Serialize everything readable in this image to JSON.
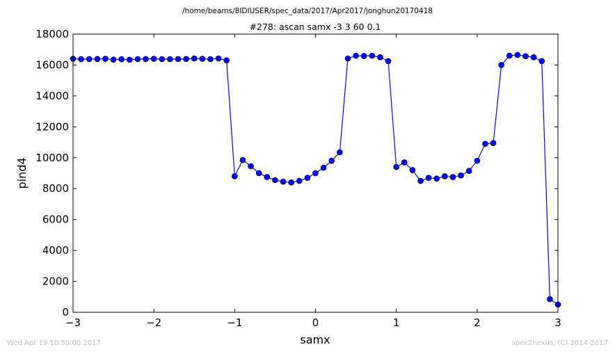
{
  "suptitle": "/home/beams/8IDIUSER/spec_data/2017/Apr2017/jonghun20170418",
  "footer_left": "Wed Apr 19 10:50:00 2017",
  "footer_right": "spec2nexus, (C) 2014-2017",
  "chart_data": {
    "type": "line",
    "title": "#278: ascan  samx -3 3  60 0.1",
    "xlabel": "samx",
    "ylabel": "pind4",
    "xlim": [
      -3,
      3
    ],
    "ylim": [
      0,
      18000
    ],
    "xticks": [
      -3,
      -2,
      -1,
      0,
      1,
      2,
      3
    ],
    "xtick_labels": [
      "−3",
      "−2",
      "−1",
      "0",
      "1",
      "2",
      "3"
    ],
    "yticks": [
      0,
      2000,
      4000,
      6000,
      8000,
      10000,
      12000,
      14000,
      16000,
      18000
    ],
    "ytick_labels": [
      "0",
      "2000",
      "4000",
      "6000",
      "8000",
      "10000",
      "12000",
      "14000",
      "16000",
      "18000"
    ],
    "grid": false,
    "line_color": "#0000ff",
    "marker": "circle",
    "series": [
      {
        "x": [
          -3.0,
          -2.9,
          -2.8,
          -2.7,
          -2.6,
          -2.5,
          -2.4,
          -2.3,
          -2.2,
          -2.1,
          -2.0,
          -1.9,
          -1.8,
          -1.7,
          -1.6,
          -1.5,
          -1.4,
          -1.3,
          -1.2,
          -1.1,
          -1.0,
          -0.9,
          -0.8,
          -0.7,
          -0.6,
          -0.5,
          -0.4,
          -0.3,
          -0.2,
          -0.1,
          0.0,
          0.1,
          0.2,
          0.3,
          0.4,
          0.5,
          0.6,
          0.7,
          0.8,
          0.9,
          1.0,
          1.1,
          1.2,
          1.3,
          1.4,
          1.5,
          1.6,
          1.7,
          1.8,
          1.9,
          2.0,
          2.1,
          2.2,
          2.3,
          2.4,
          2.5,
          2.6,
          2.7,
          2.8,
          2.9,
          3.0
        ],
        "y": [
          16400,
          16380,
          16380,
          16390,
          16400,
          16350,
          16370,
          16340,
          16380,
          16390,
          16400,
          16380,
          16380,
          16380,
          16390,
          16420,
          16400,
          16380,
          16420,
          16300,
          8800,
          9850,
          9450,
          9000,
          8750,
          8550,
          8450,
          8400,
          8500,
          8700,
          9000,
          9350,
          9800,
          10350,
          16420,
          16600,
          16580,
          16600,
          16500,
          16250,
          9400,
          9700,
          9200,
          8500,
          8700,
          8650,
          8800,
          8750,
          8850,
          9150,
          9800,
          10900,
          10950,
          16000,
          16600,
          16650,
          16570,
          16500,
          16250,
          850,
          500
        ]
      }
    ]
  }
}
